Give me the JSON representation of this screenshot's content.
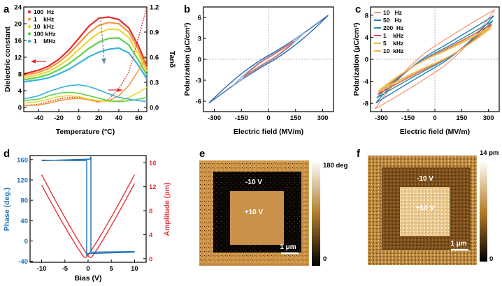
{
  "panels": {
    "a": {
      "label": "a"
    },
    "b": {
      "label": "b"
    },
    "c": {
      "label": "c"
    },
    "d": {
      "label": "d"
    },
    "e": {
      "label": "e"
    },
    "f": {
      "label": "f"
    }
  },
  "colors": {
    "red": "#e62c2c",
    "orange": "#f39a3c",
    "yellow": "#e9d83a",
    "green": "#5fd04c",
    "cyan": "#38b2d8",
    "blue": "#2e78b8",
    "darkblue": "#1f5f96",
    "phase": "#1a6fb5",
    "amplitude": "#e0363a"
  },
  "chart_data": [
    {
      "panel": "a",
      "type": "line",
      "xlabel": "Temperature (°C)",
      "ylabel": "Dielectric constant",
      "y2label": "Tanδ",
      "xlim": [
        -55,
        68
      ],
      "ylim": [
        -1,
        24
      ],
      "y2lim": [
        -0.05,
        1.2
      ],
      "xticks": [
        -40,
        -20,
        0,
        20,
        40,
        60
      ],
      "yticks": [
        0,
        4,
        8,
        12,
        16,
        20,
        24
      ],
      "y2ticks": [
        "0.0",
        "0.3",
        "0.6",
        "0.9",
        "1.2"
      ],
      "legend": [
        "100  Hz",
        "1    kHz",
        "10  kHz",
        "100 kHz",
        "1    MHz"
      ],
      "x": [
        -55,
        -40,
        -30,
        -20,
        -10,
        0,
        10,
        20,
        30,
        40,
        50,
        60,
        68
      ],
      "series": [
        {
          "name": "100 Hz",
          "values": [
            8.0,
            8.9,
            9.9,
            11.5,
            13.7,
            16.5,
            19.4,
            21.3,
            21.6,
            21.0,
            19.0,
            14.5,
            10.0
          ]
        },
        {
          "name": "1 kHz",
          "values": [
            7.6,
            8.4,
            9.3,
            10.8,
            12.8,
            15.3,
            17.8,
            19.6,
            20.3,
            20.0,
            18.0,
            13.6,
            9.3
          ]
        },
        {
          "name": "10 kHz",
          "values": [
            7.1,
            7.8,
            8.6,
            9.9,
            11.6,
            13.8,
            16.0,
            17.8,
            18.7,
            18.6,
            16.7,
            12.5,
            8.6
          ]
        },
        {
          "name": "100 kHz",
          "values": [
            6.6,
            7.2,
            7.9,
            9.0,
            10.4,
            12.2,
            14.1,
            15.6,
            16.5,
            16.6,
            14.9,
            11.2,
            7.7
          ]
        },
        {
          "name": "1 MHz",
          "values": [
            6.1,
            6.6,
            7.1,
            8.0,
            9.1,
            10.6,
            12.1,
            13.2,
            13.9,
            14.2,
            13.0,
            9.9,
            6.8
          ]
        }
      ],
      "tan_series": [
        {
          "name": "100 Hz",
          "values": [
            0.02,
            0.04,
            0.07,
            0.1,
            0.12,
            0.12,
            0.09,
            0.06,
            0.1,
            0.22,
            0.42,
            0.85,
            1.2
          ]
        },
        {
          "name": "1 kHz",
          "values": [
            0.02,
            0.03,
            0.05,
            0.08,
            0.1,
            0.11,
            0.09,
            0.07,
            0.08,
            0.14,
            0.26,
            0.45,
            0.62
          ]
        },
        {
          "name": "10 kHz",
          "values": [
            0.05,
            0.07,
            0.1,
            0.13,
            0.14,
            0.13,
            0.1,
            0.08,
            0.07,
            0.08,
            0.12,
            0.18,
            0.24
          ]
        },
        {
          "name": "100 kHz",
          "values": [
            0.08,
            0.1,
            0.14,
            0.17,
            0.18,
            0.17,
            0.14,
            0.11,
            0.08,
            0.07,
            0.08,
            0.1,
            0.12
          ]
        },
        {
          "name": "1 MHz",
          "values": [
            0.1,
            0.14,
            0.19,
            0.23,
            0.26,
            0.27,
            0.25,
            0.21,
            0.16,
            0.12,
            0.1,
            0.08,
            0.07
          ]
        }
      ]
    },
    {
      "panel": "b",
      "type": "line",
      "xlabel": "Electric field (MV/m)",
      "ylabel": "Polarization (μC/cm²)",
      "xlim": [
        -360,
        360
      ],
      "ylim": [
        -7.5,
        7.5
      ],
      "xticks": [
        -300,
        -150,
        0,
        150,
        300
      ],
      "yticks": [
        -6,
        -3,
        0,
        3,
        6
      ],
      "loops": [
        {
          "Emax": 330,
          "Pmax": 6.3,
          "width": 0.55
        },
        {
          "Emax": 200,
          "Pmax": 3.9,
          "width": 0.35
        },
        {
          "Emax": 140,
          "Pmax": 2.6,
          "width": 0.25
        }
      ]
    },
    {
      "panel": "c",
      "type": "line",
      "xlabel": "Electric field (MV/m)",
      "ylabel": "Polarization (μC/cm²)",
      "xlim": [
        -360,
        360
      ],
      "ylim": [
        -9.5,
        9.5
      ],
      "xticks": [
        -300,
        -150,
        0,
        150,
        300
      ],
      "yticks": [
        -8,
        -4,
        0,
        4,
        8
      ],
      "legend": [
        "10   Hz",
        "50   Hz",
        "200  Hz",
        "1    kHz",
        "5    kHz",
        "10  kHz"
      ],
      "loops": [
        {
          "name": "10 Hz",
          "Emax": 335,
          "Pmax": 9.0,
          "width": 2.4
        },
        {
          "name": "50 Hz",
          "Emax": 330,
          "Pmax": 7.9,
          "width": 1.5
        },
        {
          "name": "200 Hz",
          "Emax": 325,
          "Pmax": 7.0,
          "width": 1.1
        },
        {
          "name": "1 kHz",
          "Emax": 320,
          "Pmax": 6.4,
          "width": 0.9
        },
        {
          "name": "5 kHz",
          "Emax": 318,
          "Pmax": 6.0,
          "width": 0.8
        },
        {
          "name": "10 kHz",
          "Emax": 315,
          "Pmax": 5.7,
          "width": 0.7
        }
      ]
    },
    {
      "panel": "d",
      "type": "line",
      "xlabel": "Bias (V)",
      "ylabel": "Phase (deg.)",
      "y2label": "Amplitude (pm)",
      "xlim": [
        -12.5,
        12.5
      ],
      "ylim": [
        -42,
        168
      ],
      "y2lim": [
        -0.6,
        17.2
      ],
      "xticks": [
        -10,
        -5,
        0,
        5,
        10
      ],
      "yticks": [
        -40,
        0,
        40,
        80,
        120,
        160
      ],
      "y2ticks": [
        0,
        4,
        8,
        12,
        16
      ],
      "phase_high": 158,
      "phase_low": -22,
      "switch_bias": [
        -0.3,
        0.6
      ],
      "amplitude_max": 14.0,
      "amplitude_min_bias": [
        -0.6,
        0.5
      ]
    }
  ],
  "maps": {
    "e": {
      "scale_max": "180 deg",
      "scale_min": "0",
      "inner_label": "+10 V",
      "outer_label": "-10 V",
      "scalebar": "1 μm"
    },
    "f": {
      "scale_max": "14 pm",
      "scale_min": "0",
      "inner_label": "+10 V",
      "outer_label": "-10 V",
      "scalebar": "1 μm"
    }
  }
}
